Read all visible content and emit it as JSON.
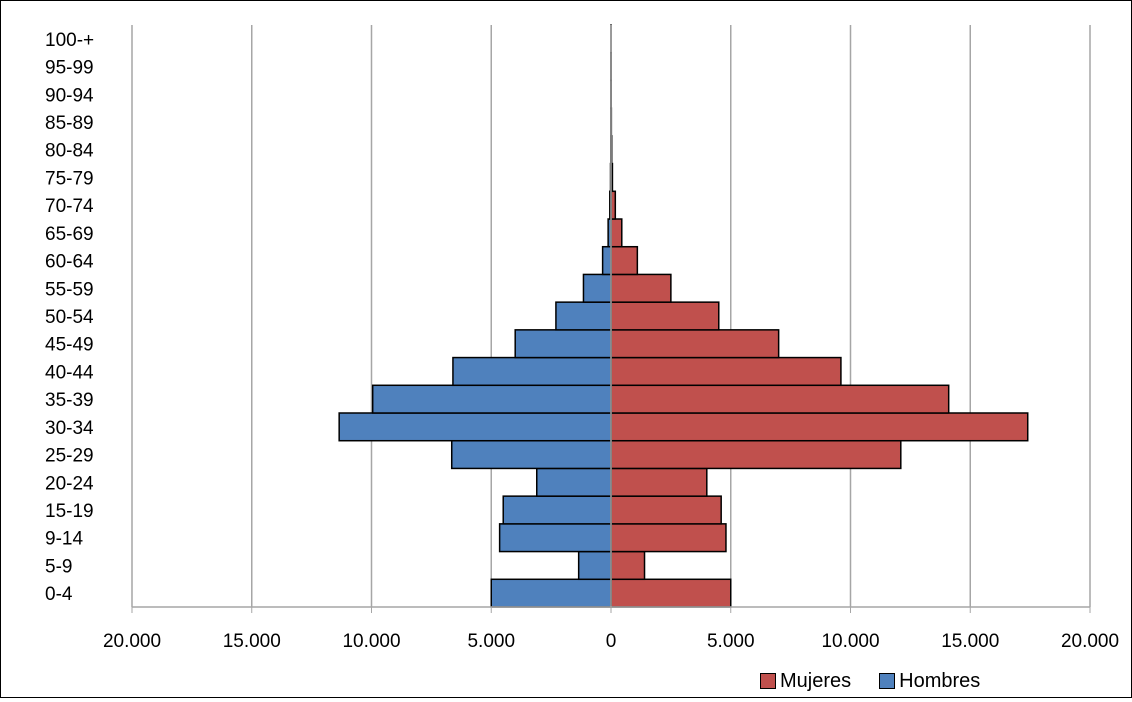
{
  "chart_data": {
    "type": "bar",
    "orientation": "horizontal",
    "layout": "population-pyramid",
    "categories": [
      "0-4",
      "5-9",
      "9-14",
      "15-19",
      "20-24",
      "25-29",
      "30-34",
      "35-39",
      "40-44",
      "45-49",
      "50-54",
      "55-59",
      "60-64",
      "65-69",
      "70-74",
      "75-79",
      "80-84",
      "85-89",
      "90-94",
      "95-99",
      "100-+"
    ],
    "series": [
      {
        "name": "Mujeres",
        "color": "#C0504D",
        "side": "right",
        "values": [
          5000,
          1400,
          4800,
          4600,
          4000,
          12100,
          17400,
          14100,
          9600,
          7000,
          4500,
          2500,
          1100,
          450,
          180,
          60,
          30,
          15,
          5,
          2,
          1
        ]
      },
      {
        "name": "Hombres",
        "color": "#4F81BD",
        "side": "left",
        "values": [
          5000,
          1350,
          4650,
          4500,
          3100,
          6650,
          11350,
          9950,
          6600,
          4000,
          2300,
          1150,
          350,
          120,
          50,
          20,
          10,
          5,
          2,
          1,
          0
        ]
      }
    ],
    "x_ticks": [
      "20.000",
      "15.000",
      "10.000",
      "5.000",
      "0",
      "5.000",
      "10.000",
      "15.000",
      "20.000"
    ],
    "xlim": [
      -20000,
      20000
    ],
    "grid": "vertical",
    "legend": "bottom-right",
    "title": "",
    "xlabel": "",
    "ylabel": ""
  },
  "legend": {
    "mujeres_label": "Mujeres",
    "hombres_label": "Hombres"
  }
}
